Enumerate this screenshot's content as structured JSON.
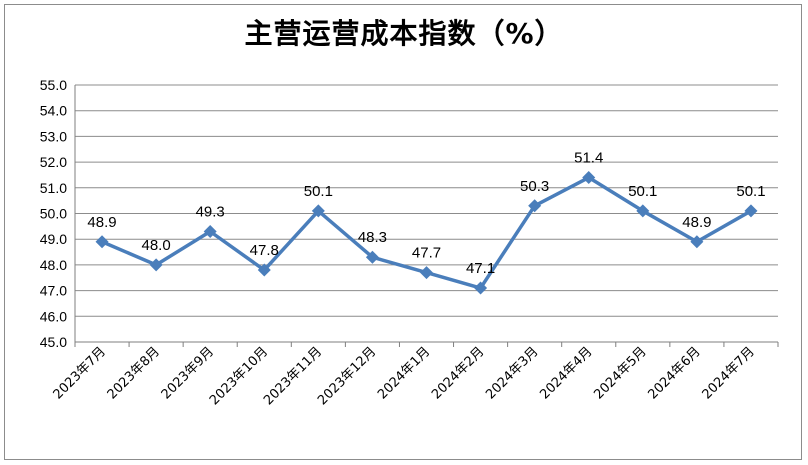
{
  "chart_data": {
    "type": "line",
    "title": "主营运营成本指数（%）",
    "categories": [
      "2023年7月",
      "2023年8月",
      "2023年9月",
      "2023年10月",
      "2023年11月",
      "2023年12月",
      "2024年1月",
      "2024年2月",
      "2024年3月",
      "2024年4月",
      "2024年5月",
      "2024年6月",
      "2024年7月"
    ],
    "series": [
      {
        "values": [
          48.9,
          48.0,
          49.3,
          47.8,
          50.1,
          48.3,
          47.7,
          47.1,
          50.3,
          51.4,
          50.1,
          48.9,
          50.1
        ]
      }
    ],
    "ylim": [
      45.0,
      55.0
    ],
    "yticks": [
      "45.0",
      "46.0",
      "47.0",
      "48.0",
      "49.0",
      "50.0",
      "51.0",
      "52.0",
      "53.0",
      "54.0",
      "55.0"
    ],
    "data_labels": [
      "48.9",
      "48.0",
      "49.3",
      "47.8",
      "50.1",
      "48.3",
      "47.7",
      "47.1",
      "50.3",
      "51.4",
      "50.1",
      "48.9",
      "50.1"
    ],
    "grid": true,
    "legend": "none",
    "colors": {
      "line": "#4a7ebb",
      "grid": "#8c8c8c",
      "axis": "#7f7f7f"
    }
  }
}
